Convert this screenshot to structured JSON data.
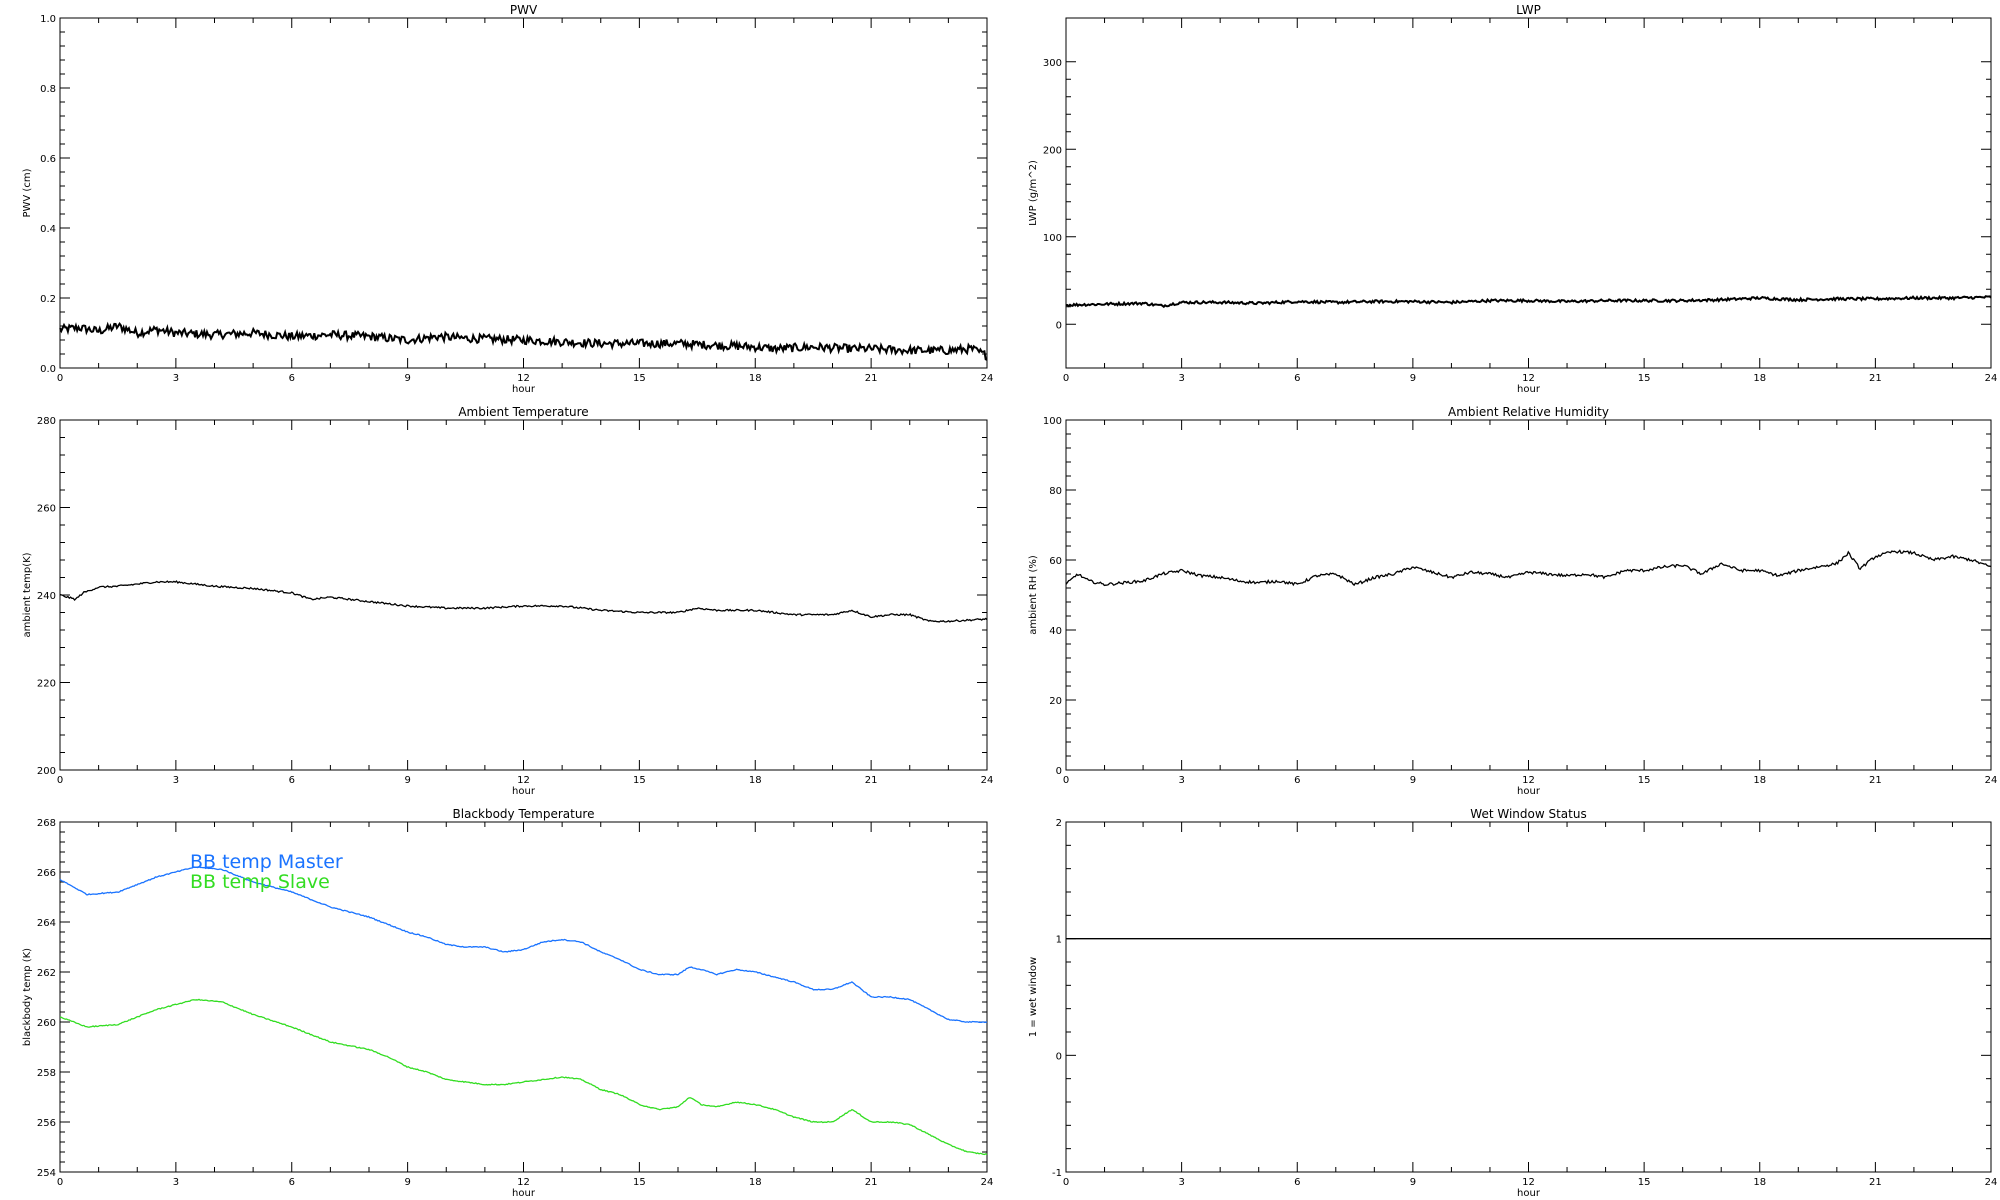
{
  "chart_data": [
    {
      "type": "line",
      "title": "PWV",
      "xlabel": "hour",
      "ylabel": "PWV (cm)",
      "xlim": [
        0,
        24
      ],
      "ylim": [
        0.0,
        1.0
      ],
      "xticks": [
        "0",
        "3",
        "6",
        "9",
        "12",
        "15",
        "18",
        "21",
        "24"
      ],
      "yticks": [
        "0.0",
        "0.2",
        "0.4",
        "0.6",
        "0.8",
        "1.0"
      ],
      "noise": 0.012,
      "series": [
        {
          "color": "#000000",
          "x": [
            0,
            0.5,
            1,
            1.5,
            2,
            2.5,
            3,
            4,
            5,
            6,
            7,
            8,
            9,
            9.8,
            10.5,
            12,
            13,
            14,
            15,
            16,
            17,
            18,
            18.5,
            19.5,
            20.5,
            21,
            22,
            23,
            23.6,
            24
          ],
          "y": [
            0.11,
            0.115,
            0.105,
            0.12,
            0.1,
            0.11,
            0.1,
            0.095,
            0.1,
            0.09,
            0.095,
            0.09,
            0.08,
            0.09,
            0.085,
            0.08,
            0.075,
            0.07,
            0.07,
            0.07,
            0.065,
            0.06,
            0.055,
            0.06,
            0.055,
            0.055,
            0.05,
            0.05,
            0.055,
            0.035
          ]
        }
      ]
    },
    {
      "type": "line",
      "title": "LWP",
      "xlabel": "hour",
      "ylabel": "LWP (g/m^2)",
      "xlim": [
        0,
        24
      ],
      "ylim": [
        -50,
        350
      ],
      "xticks": [
        "0",
        "3",
        "6",
        "9",
        "12",
        "15",
        "18",
        "21",
        "24"
      ],
      "yticks": [
        "0",
        "100",
        "200",
        "300"
      ],
      "noise": 1.5,
      "series": [
        {
          "color": "#000000",
          "x": [
            0,
            1,
            2,
            2.5,
            3,
            4,
            5,
            6,
            7,
            8,
            9,
            10,
            11,
            12,
            13,
            14,
            15,
            16,
            17,
            18,
            19,
            20,
            21,
            22,
            23,
            24
          ],
          "y": [
            22,
            23,
            24,
            21,
            25,
            25,
            24,
            26,
            25,
            26,
            26,
            25,
            27,
            27,
            26,
            27,
            27,
            27,
            28,
            30,
            28,
            29,
            29,
            30,
            30,
            31
          ]
        }
      ]
    },
    {
      "type": "line",
      "title": "Ambient Temperature",
      "xlabel": "hour",
      "ylabel": "ambient temp(K)",
      "xlim": [
        0,
        24
      ],
      "ylim": [
        200,
        280
      ],
      "xticks": [
        "0",
        "3",
        "6",
        "9",
        "12",
        "15",
        "18",
        "21",
        "24"
      ],
      "yticks": [
        "200",
        "220",
        "240",
        "260",
        "280"
      ],
      "noise": 0.2,
      "series": [
        {
          "color": "#000000",
          "x": [
            0,
            0.2,
            0.4,
            0.6,
            1,
            1.5,
            2,
            2.5,
            3,
            3.5,
            4,
            5,
            6,
            6.5,
            7,
            7.5,
            8,
            9,
            10,
            11,
            12,
            13,
            14,
            15,
            16,
            16.5,
            17,
            18,
            19,
            20,
            20.5,
            21,
            21.5,
            22,
            22.5,
            23,
            24
          ],
          "y": [
            240,
            239.5,
            239,
            240.5,
            241.8,
            242,
            242.5,
            243,
            243,
            242.5,
            242,
            241.5,
            240.5,
            239,
            239.5,
            239,
            238.5,
            237.5,
            237,
            237,
            237.5,
            237.5,
            236.5,
            236,
            236,
            237,
            236.5,
            236.5,
            235.5,
            235.5,
            236.5,
            235,
            235.5,
            235.5,
            234,
            234,
            234.5
          ]
        }
      ]
    },
    {
      "type": "line",
      "title": "Ambient Relative Humidity",
      "xlabel": "hour",
      "ylabel": "ambient RH (%)",
      "xlim": [
        0,
        24
      ],
      "ylim": [
        0,
        100
      ],
      "xticks": [
        "0",
        "3",
        "6",
        "9",
        "12",
        "15",
        "18",
        "21",
        "24"
      ],
      "yticks": [
        "0",
        "20",
        "40",
        "60",
        "80",
        "100"
      ],
      "noise": 0.4,
      "series": [
        {
          "color": "#000000",
          "x": [
            0,
            0.3,
            0.6,
            1,
            1.5,
            2,
            2.5,
            3,
            3.5,
            4,
            4.5,
            5,
            5.5,
            6,
            6.5,
            7,
            7.5,
            8,
            8.5,
            9,
            9.5,
            10,
            10.5,
            11,
            11.5,
            12,
            12.5,
            13,
            13.5,
            14,
            14.5,
            15,
            15.5,
            16,
            16.5,
            17,
            17.5,
            18,
            18.5,
            19,
            19.5,
            20,
            20.3,
            20.6,
            21,
            21.5,
            22,
            22.5,
            23,
            23.5,
            24
          ],
          "y": [
            53,
            56,
            54,
            53,
            53.5,
            54,
            56,
            57,
            55.5,
            55,
            54,
            53.5,
            54,
            53,
            55.5,
            56,
            53,
            55,
            56,
            58,
            56.5,
            55,
            56.5,
            56,
            55,
            56.5,
            56,
            55.5,
            56,
            55,
            57,
            57,
            58,
            58.5,
            56,
            59,
            57,
            57,
            55.5,
            57,
            58,
            59,
            62,
            57.5,
            61,
            62.5,
            62,
            60,
            61,
            60,
            58
          ]
        }
      ]
    },
    {
      "type": "line",
      "title": "Blackbody Temperature",
      "xlabel": "hour",
      "ylabel": "blackbody temp (K)",
      "xlim": [
        0,
        24
      ],
      "ylim": [
        254,
        268
      ],
      "xticks": [
        "0",
        "3",
        "6",
        "9",
        "12",
        "15",
        "18",
        "21",
        "24"
      ],
      "yticks": [
        "254",
        "256",
        "258",
        "260",
        "262",
        "264",
        "266",
        "268"
      ],
      "noise": 0.02,
      "legend": "upper-left",
      "series": [
        {
          "name": "BB temp Master",
          "color": "#1a73ff",
          "x": [
            0,
            0.7,
            1.5,
            2.5,
            3.5,
            4.2,
            5,
            6,
            7,
            8,
            8.5,
            9,
            9.5,
            10,
            10.5,
            11,
            11.5,
            12,
            12.5,
            13,
            13.5,
            14,
            14.5,
            15,
            15.5,
            16,
            16.3,
            16.6,
            17,
            17.5,
            18,
            18.5,
            19,
            19.5,
            20,
            20.5,
            21,
            21.5,
            22,
            22.5,
            23,
            23.5,
            24
          ],
          "y": [
            265.7,
            265.1,
            265.2,
            265.8,
            266.2,
            266.1,
            265.6,
            265.2,
            264.6,
            264.2,
            263.9,
            263.6,
            263.4,
            263.1,
            263.0,
            263.0,
            262.8,
            262.9,
            263.2,
            263.3,
            263.2,
            262.8,
            262.5,
            262.1,
            261.9,
            261.9,
            262.2,
            262.1,
            261.9,
            262.1,
            262.0,
            261.8,
            261.6,
            261.3,
            261.3,
            261.6,
            261.0,
            261.0,
            260.9,
            260.5,
            260.1,
            260.0,
            260.0
          ]
        },
        {
          "name": "BB temp Slave",
          "color": "#33dd22",
          "x": [
            0,
            0.7,
            1.5,
            2.5,
            3.5,
            4.2,
            5,
            6,
            7,
            8,
            8.5,
            9,
            9.5,
            10,
            10.5,
            11,
            11.5,
            12,
            12.5,
            13,
            13.5,
            14,
            14.5,
            15,
            15.5,
            16,
            16.3,
            16.6,
            17,
            17.5,
            18,
            18.5,
            19,
            19.5,
            20,
            20.5,
            21,
            21.5,
            22,
            22.5,
            23,
            23.5,
            24
          ],
          "y": [
            260.2,
            259.8,
            259.9,
            260.5,
            260.9,
            260.8,
            260.3,
            259.8,
            259.2,
            258.9,
            258.6,
            258.2,
            258.0,
            257.7,
            257.6,
            257.5,
            257.5,
            257.6,
            257.7,
            257.8,
            257.7,
            257.3,
            257.1,
            256.7,
            256.5,
            256.6,
            257.0,
            256.7,
            256.6,
            256.8,
            256.7,
            256.5,
            256.2,
            256.0,
            256.0,
            256.5,
            256.0,
            256.0,
            255.9,
            255.5,
            255.1,
            254.8,
            254.7
          ]
        }
      ]
    },
    {
      "type": "line",
      "title": "Wet Window Status",
      "xlabel": "hour",
      "ylabel": "1 = wet window",
      "xlim": [
        0,
        24
      ],
      "ylim": [
        -1,
        2
      ],
      "xticks": [
        "0",
        "3",
        "6",
        "9",
        "12",
        "15",
        "18",
        "21",
        "24"
      ],
      "yticks": [
        "-1",
        "0",
        "1",
        "2"
      ],
      "noise": 0,
      "series": [
        {
          "color": "#000000",
          "x": [
            0,
            24
          ],
          "y": [
            1,
            1
          ]
        }
      ]
    }
  ]
}
